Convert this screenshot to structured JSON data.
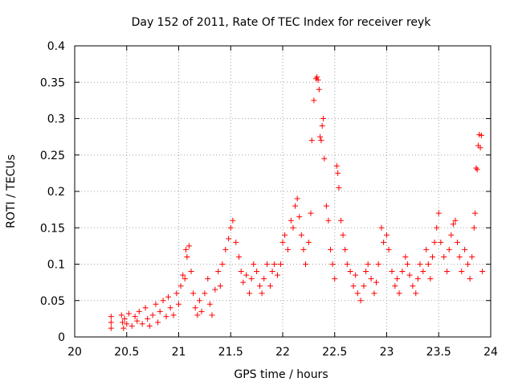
{
  "chart_data": {
    "type": "scatter",
    "title": "Day 152 of 2011, Rate Of TEC Index for receiver reyk",
    "xlabel": "GPS time / hours",
    "ylabel": "ROTI / TECUs",
    "xlim": [
      20,
      24
    ],
    "ylim": [
      0,
      0.4
    ],
    "xticks": [
      "20",
      "20.5",
      "21",
      "21.5",
      "22",
      "22.5",
      "23",
      "23.5",
      "24"
    ],
    "yticks": [
      "0",
      "0.05",
      "0.1",
      "0.15",
      "0.2",
      "0.25",
      "0.3",
      "0.35",
      "0.4"
    ],
    "grid": true,
    "marker": "+",
    "marker_color": "#ff0000",
    "series": [
      {
        "name": "ROTI",
        "points": [
          [
            20.35,
            0.028
          ],
          [
            20.35,
            0.02
          ],
          [
            20.35,
            0.012
          ],
          [
            20.45,
            0.03
          ],
          [
            20.46,
            0.02
          ],
          [
            20.47,
            0.012
          ],
          [
            20.48,
            0.025
          ],
          [
            20.5,
            0.018
          ],
          [
            20.52,
            0.032
          ],
          [
            20.55,
            0.015
          ],
          [
            20.58,
            0.028
          ],
          [
            20.6,
            0.022
          ],
          [
            20.62,
            0.035
          ],
          [
            20.65,
            0.018
          ],
          [
            20.68,
            0.04
          ],
          [
            20.7,
            0.025
          ],
          [
            20.72,
            0.015
          ],
          [
            20.75,
            0.03
          ],
          [
            20.78,
            0.045
          ],
          [
            20.8,
            0.02
          ],
          [
            20.82,
            0.035
          ],
          [
            20.85,
            0.05
          ],
          [
            20.88,
            0.028
          ],
          [
            20.9,
            0.055
          ],
          [
            20.92,
            0.04
          ],
          [
            20.95,
            0.03
          ],
          [
            20.98,
            0.06
          ],
          [
            21.0,
            0.045
          ],
          [
            21.02,
            0.07
          ],
          [
            21.04,
            0.085
          ],
          [
            21.06,
            0.08
          ],
          [
            21.07,
            0.12
          ],
          [
            21.08,
            0.11
          ],
          [
            21.1,
            0.125
          ],
          [
            21.12,
            0.09
          ],
          [
            21.14,
            0.06
          ],
          [
            21.16,
            0.04
          ],
          [
            21.18,
            0.03
          ],
          [
            21.2,
            0.05
          ],
          [
            21.22,
            0.035
          ],
          [
            21.25,
            0.06
          ],
          [
            21.28,
            0.08
          ],
          [
            21.3,
            0.045
          ],
          [
            21.32,
            0.03
          ],
          [
            21.35,
            0.065
          ],
          [
            21.38,
            0.09
          ],
          [
            21.4,
            0.07
          ],
          [
            21.42,
            0.1
          ],
          [
            21.45,
            0.12
          ],
          [
            21.48,
            0.135
          ],
          [
            21.5,
            0.15
          ],
          [
            21.52,
            0.16
          ],
          [
            21.55,
            0.13
          ],
          [
            21.58,
            0.11
          ],
          [
            21.6,
            0.09
          ],
          [
            21.62,
            0.075
          ],
          [
            21.65,
            0.085
          ],
          [
            21.68,
            0.06
          ],
          [
            21.7,
            0.08
          ],
          [
            21.72,
            0.1
          ],
          [
            21.75,
            0.09
          ],
          [
            21.78,
            0.07
          ],
          [
            21.8,
            0.06
          ],
          [
            21.82,
            0.08
          ],
          [
            21.85,
            0.1
          ],
          [
            21.88,
            0.07
          ],
          [
            21.9,
            0.09
          ],
          [
            21.92,
            0.1
          ],
          [
            21.95,
            0.085
          ],
          [
            21.98,
            0.1
          ],
          [
            22.0,
            0.13
          ],
          [
            22.02,
            0.14
          ],
          [
            22.05,
            0.12
          ],
          [
            22.08,
            0.16
          ],
          [
            22.1,
            0.15
          ],
          [
            22.12,
            0.18
          ],
          [
            22.14,
            0.19
          ],
          [
            22.16,
            0.165
          ],
          [
            22.18,
            0.14
          ],
          [
            22.2,
            0.12
          ],
          [
            22.22,
            0.1
          ],
          [
            22.25,
            0.13
          ],
          [
            22.27,
            0.17
          ],
          [
            22.28,
            0.27
          ],
          [
            22.3,
            0.325
          ],
          [
            22.32,
            0.355
          ],
          [
            22.33,
            0.357
          ],
          [
            22.34,
            0.353
          ],
          [
            22.35,
            0.34
          ],
          [
            22.36,
            0.275
          ],
          [
            22.37,
            0.27
          ],
          [
            22.38,
            0.29
          ],
          [
            22.39,
            0.3
          ],
          [
            22.4,
            0.245
          ],
          [
            22.42,
            0.18
          ],
          [
            22.44,
            0.16
          ],
          [
            22.46,
            0.12
          ],
          [
            22.48,
            0.1
          ],
          [
            22.5,
            0.08
          ],
          [
            22.52,
            0.235
          ],
          [
            22.53,
            0.225
          ],
          [
            22.54,
            0.205
          ],
          [
            22.56,
            0.16
          ],
          [
            22.58,
            0.14
          ],
          [
            22.6,
            0.12
          ],
          [
            22.62,
            0.1
          ],
          [
            22.65,
            0.09
          ],
          [
            22.68,
            0.07
          ],
          [
            22.7,
            0.085
          ],
          [
            22.72,
            0.06
          ],
          [
            22.75,
            0.05
          ],
          [
            22.78,
            0.07
          ],
          [
            22.8,
            0.09
          ],
          [
            22.82,
            0.1
          ],
          [
            22.85,
            0.08
          ],
          [
            22.88,
            0.06
          ],
          [
            22.9,
            0.075
          ],
          [
            22.92,
            0.1
          ],
          [
            22.95,
            0.15
          ],
          [
            22.97,
            0.13
          ],
          [
            23.0,
            0.14
          ],
          [
            23.02,
            0.12
          ],
          [
            23.05,
            0.09
          ],
          [
            23.08,
            0.07
          ],
          [
            23.1,
            0.08
          ],
          [
            23.12,
            0.06
          ],
          [
            23.15,
            0.09
          ],
          [
            23.18,
            0.11
          ],
          [
            23.2,
            0.1
          ],
          [
            23.22,
            0.085
          ],
          [
            23.25,
            0.07
          ],
          [
            23.28,
            0.06
          ],
          [
            23.3,
            0.08
          ],
          [
            23.32,
            0.1
          ],
          [
            23.35,
            0.09
          ],
          [
            23.38,
            0.12
          ],
          [
            23.4,
            0.1
          ],
          [
            23.42,
            0.08
          ],
          [
            23.44,
            0.11
          ],
          [
            23.46,
            0.13
          ],
          [
            23.48,
            0.15
          ],
          [
            23.5,
            0.17
          ],
          [
            23.52,
            0.13
          ],
          [
            23.55,
            0.11
          ],
          [
            23.58,
            0.09
          ],
          [
            23.6,
            0.12
          ],
          [
            23.62,
            0.14
          ],
          [
            23.64,
            0.155
          ],
          [
            23.66,
            0.16
          ],
          [
            23.68,
            0.13
          ],
          [
            23.7,
            0.11
          ],
          [
            23.72,
            0.09
          ],
          [
            23.75,
            0.12
          ],
          [
            23.78,
            0.1
          ],
          [
            23.8,
            0.08
          ],
          [
            23.82,
            0.11
          ],
          [
            23.84,
            0.15
          ],
          [
            23.85,
            0.17
          ],
          [
            23.86,
            0.232
          ],
          [
            23.87,
            0.23
          ],
          [
            23.88,
            0.263
          ],
          [
            23.89,
            0.278
          ],
          [
            23.9,
            0.26
          ],
          [
            23.91,
            0.277
          ],
          [
            23.92,
            0.09
          ]
        ]
      }
    ]
  }
}
